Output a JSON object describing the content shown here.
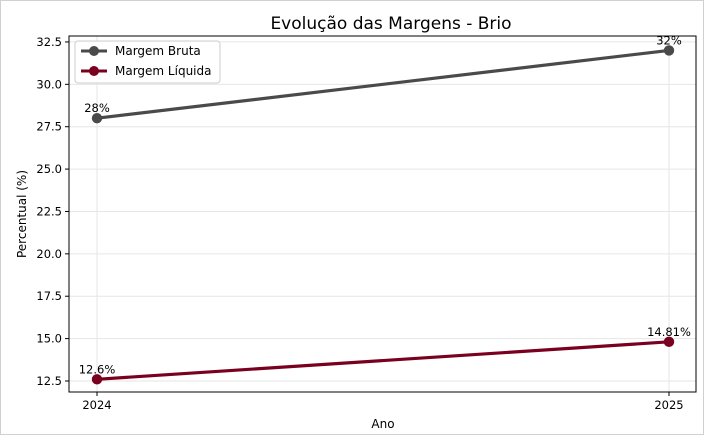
{
  "chart_data": {
    "type": "line",
    "title": "Evolução das Margens - Brio",
    "xlabel": "Ano",
    "ylabel": "Percentual (%)",
    "categories": [
      "2024",
      "2025"
    ],
    "ylim": [
      11.85,
      32.85
    ],
    "yticks": [
      "12.5",
      "15.0",
      "17.5",
      "20.0",
      "22.5",
      "25.0",
      "27.5",
      "30.0",
      "32.5"
    ],
    "ytick_values": [
      12.5,
      15.0,
      17.5,
      20.0,
      22.5,
      25.0,
      27.5,
      30.0,
      32.5
    ],
    "grid": true,
    "legend_position": "top-left",
    "series": [
      {
        "name": "Margem Bruta",
        "values": [
          28,
          32
        ],
        "labels": [
          "28%",
          "32%"
        ],
        "color": "#4a4a4a"
      },
      {
        "name": "Margem Líquida",
        "values": [
          12.6,
          14.81
        ],
        "labels": [
          "12.6%",
          "14.81%"
        ],
        "color": "#7a0020"
      }
    ]
  }
}
